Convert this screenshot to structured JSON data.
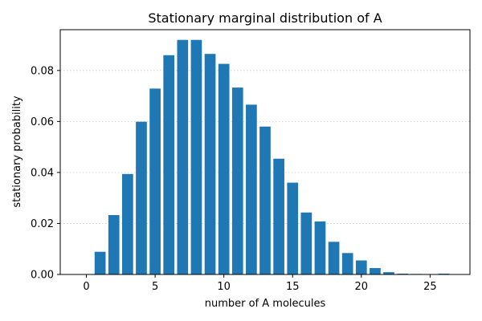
{
  "chart_data": {
    "type": "bar",
    "title": "Stationary marginal distribution of A",
    "xlabel": "number of A molecules",
    "ylabel": "stationary probability",
    "x": [
      0,
      1,
      2,
      3,
      4,
      5,
      6,
      7,
      8,
      9,
      10,
      11,
      12,
      13,
      14,
      15,
      16,
      17,
      18,
      19,
      20,
      21,
      22,
      23,
      24,
      25,
      26
    ],
    "values": [
      0.0,
      0.0089,
      0.0233,
      0.0394,
      0.0599,
      0.0729,
      0.086,
      0.092,
      0.092,
      0.0865,
      0.0826,
      0.0733,
      0.0666,
      0.058,
      0.0454,
      0.036,
      0.0243,
      0.0208,
      0.0128,
      0.0084,
      0.0055,
      0.0025,
      0.0009,
      0.0003,
      0.0002,
      0.0001,
      0.0003
    ],
    "xlim": [
      -1.9,
      27.9
    ],
    "ylim": [
      0,
      0.096
    ],
    "xticks": [
      0,
      5,
      10,
      15,
      20,
      25
    ],
    "xtick_labels": [
      "0",
      "5",
      "10",
      "15",
      "20",
      "25"
    ],
    "yticks": [
      0.0,
      0.02,
      0.04,
      0.06,
      0.08
    ],
    "ytick_labels": [
      "0.00",
      "0.02",
      "0.04",
      "0.06",
      "0.08"
    ],
    "grid": "y-dotted",
    "bar_color": "#1f77b4",
    "grid_color": "#cccccc"
  }
}
